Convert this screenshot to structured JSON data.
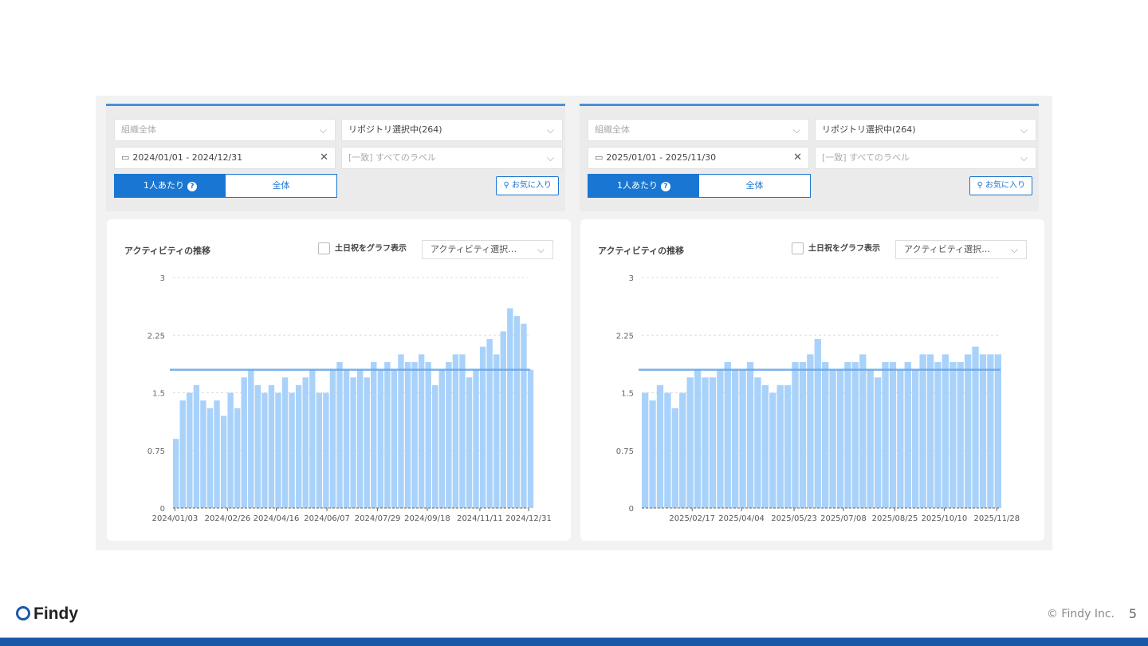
{
  "panels": [
    {
      "org": "組織全体",
      "repo": "リポジトリ選択中(264)",
      "date_range": "2024/01/01 - 2024/12/31",
      "label_filter": "[一致] すべてのラベル",
      "per_person": "1人あたり",
      "all": "全体",
      "favorite": "お気に入り",
      "chart_title": "アクティビティの推移",
      "weekend_toggle": "土日祝をグラフ表示",
      "activity_select": "アクティビティ選択…"
    },
    {
      "org": "組織全体",
      "repo": "リポジトリ選択中(264)",
      "date_range": "2025/01/01 - 2025/11/30",
      "label_filter": "[一致] すべてのラベル",
      "per_person": "1人あたり",
      "all": "全体",
      "favorite": "お気に入り",
      "chart_title": "アクティビティの推移",
      "weekend_toggle": "土日祝をグラフ表示",
      "activity_select": "アクティビティ選択…"
    }
  ],
  "colors": {
    "accent": "#1976d2",
    "bar": "#a9d2fb",
    "average_line": "#6aa9e9",
    "footer_bar": "#1858a6"
  },
  "chart_data": [
    {
      "type": "bar",
      "ylim": [
        0,
        3
      ],
      "yticks": [
        "0",
        "0.75",
        "1.5",
        "2.25",
        "3"
      ],
      "grid": "horizontal-dashed",
      "xrange": [
        "2024/01/01",
        "2024/12/31"
      ],
      "xticks": [
        "2024/01/03",
        "2024/02/26",
        "2024/04/16",
        "2024/06/07",
        "2024/07/29",
        "2024/09/18",
        "2024/11/11",
        "2024/12/31"
      ],
      "average": 1.8,
      "x": [
        "2024/01/01",
        "2024/01/08",
        "2024/01/15",
        "2024/01/22",
        "2024/01/29",
        "2024/02/05",
        "2024/02/12",
        "2024/02/19",
        "2024/02/26",
        "2024/03/04",
        "2024/03/11",
        "2024/03/18",
        "2024/03/25",
        "2024/04/01",
        "2024/04/08",
        "2024/04/15",
        "2024/04/22",
        "2024/04/29",
        "2024/05/06",
        "2024/05/13",
        "2024/05/20",
        "2024/05/27",
        "2024/06/03",
        "2024/06/10",
        "2024/06/17",
        "2024/06/24",
        "2024/07/01",
        "2024/07/08",
        "2024/07/15",
        "2024/07/22",
        "2024/07/29",
        "2024/08/05",
        "2024/08/12",
        "2024/08/19",
        "2024/08/26",
        "2024/09/02",
        "2024/09/09",
        "2024/09/16",
        "2024/09/23",
        "2024/09/30",
        "2024/10/07",
        "2024/10/14",
        "2024/10/21",
        "2024/10/28",
        "2024/11/04",
        "2024/11/11",
        "2024/11/18",
        "2024/11/25",
        "2024/12/02",
        "2024/12/09",
        "2024/12/16",
        "2024/12/23",
        "2024/12/30"
      ],
      "values": [
        0.9,
        1.4,
        1.5,
        1.6,
        1.4,
        1.3,
        1.4,
        1.2,
        1.5,
        1.3,
        1.7,
        1.8,
        1.6,
        1.5,
        1.6,
        1.5,
        1.7,
        1.5,
        1.6,
        1.7,
        1.8,
        1.5,
        1.5,
        1.8,
        1.9,
        1.8,
        1.7,
        1.8,
        1.7,
        1.9,
        1.8,
        1.9,
        1.8,
        2.0,
        1.9,
        1.9,
        2.0,
        1.9,
        1.6,
        1.8,
        1.9,
        2.0,
        2.0,
        1.7,
        1.8,
        2.1,
        2.2,
        2.0,
        2.3,
        2.6,
        2.5,
        2.4,
        1.8
      ]
    },
    {
      "type": "bar",
      "ylim": [
        0,
        3
      ],
      "yticks": [
        "0",
        "0.75",
        "1.5",
        "2.25",
        "3"
      ],
      "grid": "horizontal-dashed",
      "xrange": [
        "2025/01/01",
        "2025/11/30"
      ],
      "xticks": [
        "2025/02/17",
        "2025/04/04",
        "2025/05/23",
        "2025/07/08",
        "2025/08/25",
        "2025/10/10",
        "2025/11/28"
      ],
      "average": 1.8,
      "x": [
        "2025/01/01",
        "2025/01/08",
        "2025/01/15",
        "2025/01/22",
        "2025/01/29",
        "2025/02/05",
        "2025/02/12",
        "2025/02/19",
        "2025/02/26",
        "2025/03/05",
        "2025/03/12",
        "2025/03/19",
        "2025/03/26",
        "2025/04/02",
        "2025/04/09",
        "2025/04/16",
        "2025/04/23",
        "2025/04/30",
        "2025/05/07",
        "2025/05/14",
        "2025/05/21",
        "2025/05/28",
        "2025/06/04",
        "2025/06/11",
        "2025/06/18",
        "2025/06/25",
        "2025/07/02",
        "2025/07/09",
        "2025/07/16",
        "2025/07/23",
        "2025/07/30",
        "2025/08/06",
        "2025/08/13",
        "2025/08/20",
        "2025/08/27",
        "2025/09/03",
        "2025/09/10",
        "2025/09/17",
        "2025/09/24",
        "2025/10/01",
        "2025/10/08",
        "2025/10/15",
        "2025/10/22",
        "2025/10/29",
        "2025/11/05",
        "2025/11/12",
        "2025/11/19",
        "2025/11/26"
      ],
      "values": [
        1.5,
        1.4,
        1.6,
        1.5,
        1.3,
        1.5,
        1.7,
        1.8,
        1.7,
        1.7,
        1.8,
        1.9,
        1.8,
        1.8,
        1.9,
        1.7,
        1.6,
        1.5,
        1.6,
        1.6,
        1.9,
        1.9,
        2.0,
        2.2,
        1.9,
        1.8,
        1.8,
        1.9,
        1.9,
        2.0,
        1.8,
        1.7,
        1.9,
        1.9,
        1.8,
        1.9,
        1.8,
        2.0,
        2.0,
        1.9,
        2.0,
        1.9,
        1.9,
        2.0,
        2.1,
        2.0,
        2.0,
        2.0
      ]
    }
  ],
  "footer": {
    "logo": "Findy",
    "copyright": "© Findy Inc.",
    "page": "5"
  }
}
